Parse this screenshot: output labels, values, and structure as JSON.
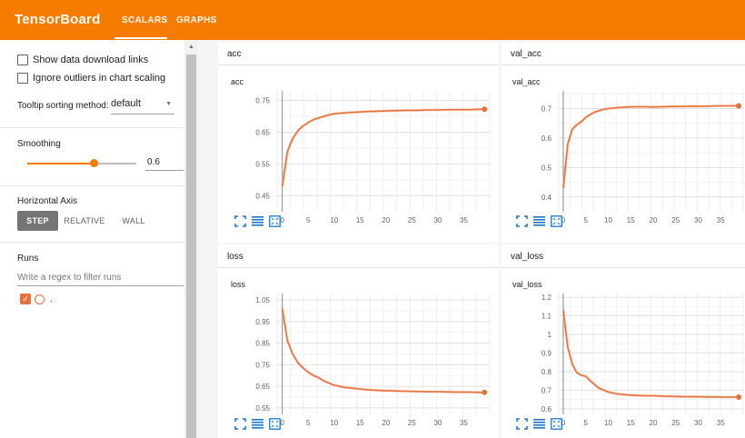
{
  "app": {
    "brand": "TensorBoard",
    "tabs": [
      {
        "label": "SCALARS",
        "active": true
      },
      {
        "label": "GRAPHS",
        "active": false
      }
    ],
    "colors": {
      "header": "#f57c00",
      "series": "#e8703a"
    }
  },
  "sidebar": {
    "show_download_links": {
      "label": "Show data download links",
      "checked": false
    },
    "ignore_outliers": {
      "label": "Ignore outliers in chart scaling",
      "checked": false
    },
    "tooltip_label": "Tooltip sorting method:",
    "tooltip_value": "default",
    "smoothing_label": "Smoothing",
    "smoothing_value": "0.6",
    "horizontal_axis_label": "Horizontal Axis",
    "axis_options": [
      "STEP",
      "RELATIVE",
      "WALL"
    ],
    "axis_selected": "STEP",
    "runs_label": "Runs",
    "runs_filter_placeholder": "Write a regex to filter runs",
    "runs": [
      {
        "name": ".",
        "checked": true
      }
    ]
  },
  "cards": [
    {
      "header": "acc"
    },
    {
      "header": "val_acc"
    },
    {
      "header": "loss"
    },
    {
      "header": "val_loss"
    }
  ],
  "chart_data": [
    {
      "type": "line",
      "title": "acc",
      "xlabel": "",
      "ylabel": "",
      "x_ticks": [
        0,
        5,
        10,
        15,
        20,
        25,
        30,
        35
      ],
      "y_ticks": [
        0.45,
        0.55,
        0.65,
        0.75
      ],
      "xlim": [
        -1,
        40
      ],
      "ylim": [
        0.4,
        0.78
      ],
      "grid": true,
      "series": [
        {
          "x": [
            0,
            1,
            2,
            3,
            4,
            5,
            6,
            7,
            8,
            9,
            10,
            12,
            14,
            16,
            18,
            20,
            22,
            24,
            26,
            28,
            30,
            32,
            34,
            36,
            38,
            39
          ],
          "y": [
            0.48,
            0.59,
            0.63,
            0.655,
            0.67,
            0.68,
            0.69,
            0.695,
            0.7,
            0.705,
            0.708,
            0.711,
            0.713,
            0.715,
            0.716,
            0.717,
            0.718,
            0.719,
            0.719,
            0.72,
            0.72,
            0.721,
            0.721,
            0.721,
            0.722,
            0.722
          ]
        }
      ]
    },
    {
      "type": "line",
      "title": "val_acc",
      "xlabel": "",
      "ylabel": "",
      "x_ticks": [
        0,
        5,
        10,
        15,
        20,
        25,
        30,
        35
      ],
      "y_ticks": [
        0.4,
        0.5,
        0.6,
        0.7
      ],
      "xlim": [
        -1,
        40
      ],
      "ylim": [
        0.35,
        0.76
      ],
      "grid": true,
      "series": [
        {
          "x": [
            0,
            1,
            2,
            3,
            4,
            5,
            6,
            7,
            8,
            9,
            10,
            12,
            14,
            16,
            18,
            20,
            22,
            24,
            26,
            28,
            30,
            32,
            34,
            36,
            38,
            39
          ],
          "y": [
            0.43,
            0.58,
            0.63,
            0.645,
            0.655,
            0.67,
            0.68,
            0.688,
            0.693,
            0.697,
            0.7,
            0.703,
            0.705,
            0.706,
            0.706,
            0.705,
            0.706,
            0.707,
            0.707,
            0.708,
            0.708,
            0.708,
            0.709,
            0.709,
            0.709,
            0.709
          ]
        }
      ]
    },
    {
      "type": "line",
      "title": "loss",
      "xlabel": "",
      "ylabel": "",
      "x_ticks": [
        0,
        5,
        10,
        15,
        20,
        25,
        30,
        35
      ],
      "y_ticks": [
        0.55,
        0.65,
        0.75,
        0.85,
        0.95,
        1.05
      ],
      "xlim": [
        -1,
        40
      ],
      "ylim": [
        0.52,
        1.08
      ],
      "grid": true,
      "series": [
        {
          "x": [
            0,
            1,
            2,
            3,
            4,
            5,
            6,
            7,
            8,
            9,
            10,
            12,
            14,
            16,
            18,
            20,
            22,
            24,
            26,
            28,
            30,
            32,
            34,
            36,
            38,
            39
          ],
          "y": [
            1.01,
            0.86,
            0.8,
            0.76,
            0.735,
            0.715,
            0.7,
            0.69,
            0.675,
            0.665,
            0.655,
            0.645,
            0.64,
            0.635,
            0.632,
            0.63,
            0.628,
            0.627,
            0.626,
            0.625,
            0.625,
            0.624,
            0.623,
            0.623,
            0.622,
            0.622
          ]
        }
      ]
    },
    {
      "type": "line",
      "title": "val_loss",
      "xlabel": "",
      "ylabel": "",
      "x_ticks": [
        0,
        5,
        10,
        15,
        20,
        25,
        30,
        35
      ],
      "y_ticks": [
        0.6,
        0.7,
        0.8,
        0.9,
        1,
        1.1,
        1.2
      ],
      "xlim": [
        -1,
        40
      ],
      "ylim": [
        0.57,
        1.22
      ],
      "grid": true,
      "series": [
        {
          "x": [
            0,
            1,
            2,
            3,
            4,
            5,
            6,
            7,
            8,
            9,
            10,
            12,
            14,
            16,
            18,
            20,
            22,
            24,
            26,
            28,
            30,
            32,
            34,
            36,
            38,
            39
          ],
          "y": [
            1.13,
            0.93,
            0.84,
            0.795,
            0.78,
            0.775,
            0.75,
            0.73,
            0.71,
            0.7,
            0.69,
            0.68,
            0.675,
            0.672,
            0.67,
            0.67,
            0.668,
            0.667,
            0.666,
            0.665,
            0.665,
            0.664,
            0.664,
            0.663,
            0.663,
            0.663
          ]
        }
      ]
    }
  ]
}
